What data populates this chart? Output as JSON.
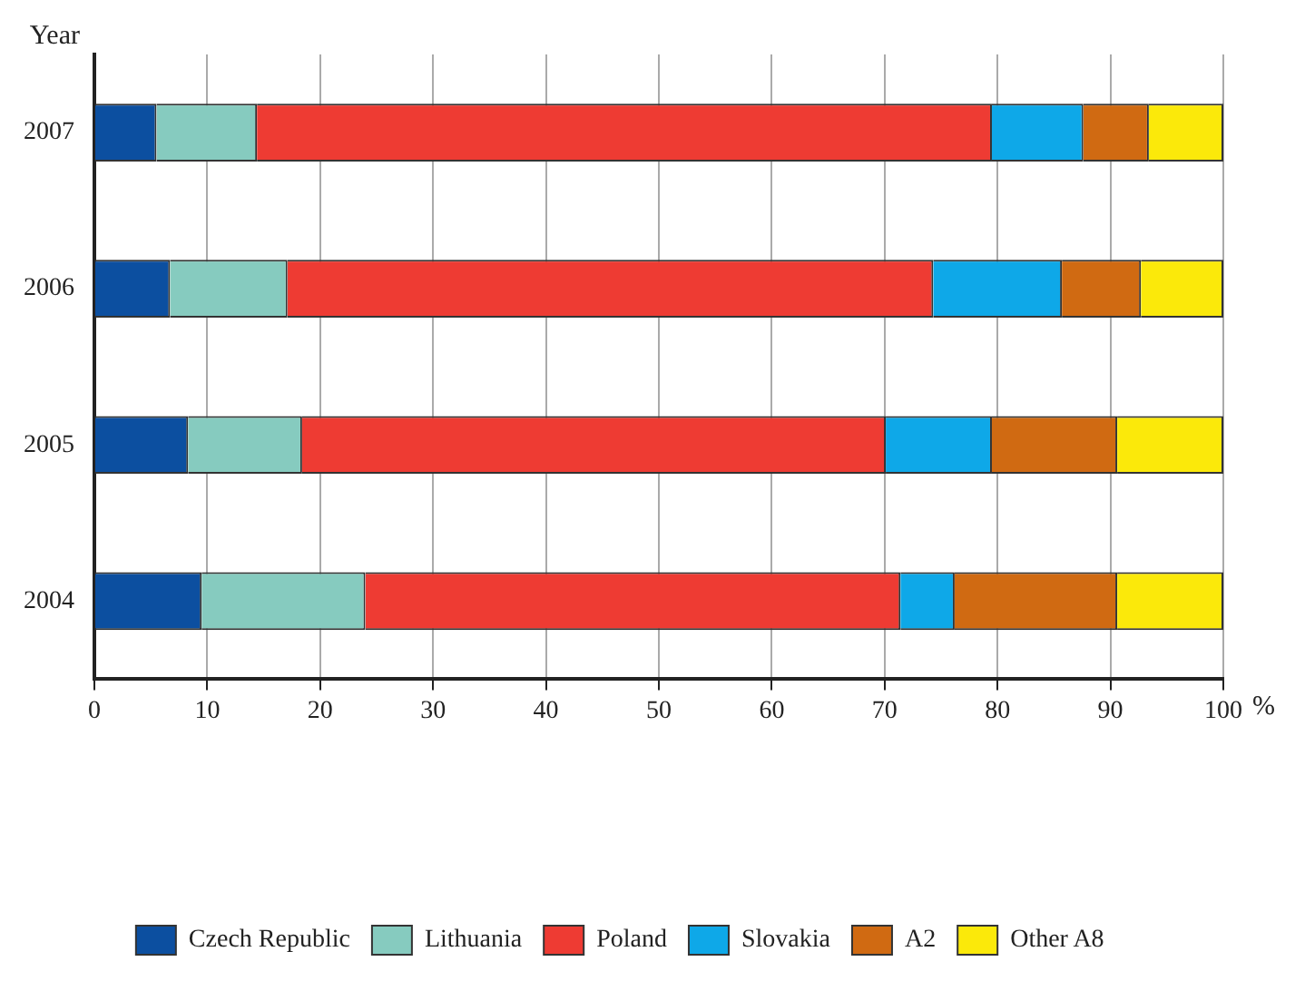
{
  "chart_data": {
    "type": "bar",
    "orientation": "horizontal",
    "stacked": true,
    "xlabel": "%",
    "ylabel": "Year",
    "categories": [
      "2007",
      "2006",
      "2005",
      "2004"
    ],
    "series": [
      {
        "name": "Czech Republic",
        "color": "#0c4fa0",
        "values": [
          5.5,
          6.7,
          8.3,
          9.5
        ]
      },
      {
        "name": "Lithuania",
        "color": "#86cbbf",
        "values": [
          8.9,
          10.4,
          10.1,
          14.5
        ]
      },
      {
        "name": "Poland",
        "color": "#ee3b33",
        "values": [
          65.1,
          57.2,
          51.7,
          47.4
        ]
      },
      {
        "name": "Slovakia",
        "color": "#0ea8e8",
        "values": [
          8.1,
          11.4,
          9.4,
          4.8
        ]
      },
      {
        "name": "A2",
        "color": "#d06a12",
        "values": [
          5.8,
          7.0,
          11.1,
          14.4
        ]
      },
      {
        "name": "Other A8",
        "color": "#fbe90a",
        "values": [
          6.6,
          7.3,
          9.4,
          9.4
        ]
      }
    ],
    "xlim": [
      0,
      100
    ],
    "xticks": [
      0,
      10,
      20,
      30,
      40,
      50,
      60,
      70,
      80,
      90,
      100
    ],
    "grid": "x",
    "legend": "bottom"
  }
}
